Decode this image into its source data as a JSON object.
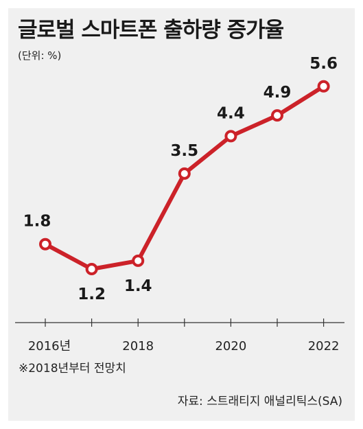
{
  "title": "글로벌 스마트폰 출하량 증가율",
  "unit_label": "(단위: %)",
  "footnote": "※2018년부터 전망치",
  "source": "자료: 스트래티지 애널리틱스(SA)",
  "colors": {
    "line": "#cc2229",
    "marker_fill": "#ffffff",
    "axis": "#333333",
    "background": "#f0f0f0"
  },
  "chart_data": {
    "type": "line",
    "title": "글로벌 스마트폰 출하량 증가율",
    "ylabel": "(단위: %)",
    "x": [
      2016,
      2017,
      2018,
      2019,
      2020,
      2021,
      2022
    ],
    "values": [
      1.8,
      1.2,
      1.4,
      3.5,
      4.4,
      4.9,
      5.6
    ],
    "value_labels": [
      "1.8",
      "1.2",
      "1.4",
      "3.5",
      "4.4",
      "4.9",
      "5.6"
    ],
    "x_tick_labels": [
      {
        "x": 2016,
        "label": "2016년"
      },
      {
        "x": 2018,
        "label": "2018"
      },
      {
        "x": 2020,
        "label": "2020"
      },
      {
        "x": 2022,
        "label": "2022"
      }
    ],
    "label_position": [
      "above",
      "below",
      "below",
      "above",
      "above",
      "above",
      "above"
    ],
    "grid": false,
    "legend": "none"
  }
}
